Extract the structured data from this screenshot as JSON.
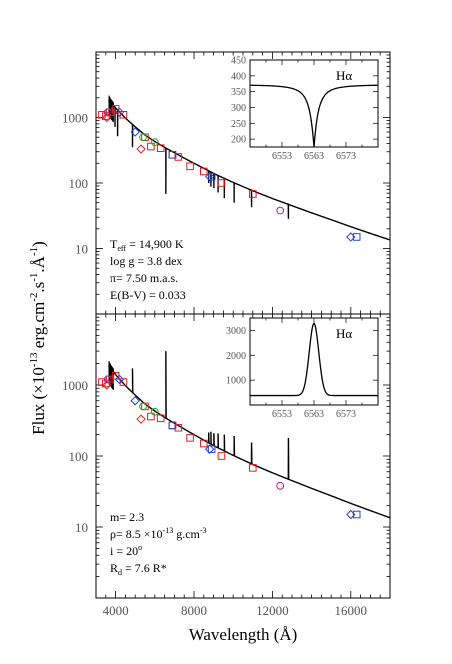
{
  "chart_data": [
    {
      "type": "line",
      "panel": "top",
      "xlim": [
        3000,
        18000
      ],
      "ylim": [
        1,
        10000
      ],
      "yscale": "log",
      "xticks": [
        4000,
        8000,
        12000,
        16000
      ],
      "yticks": [
        {
          "value": 10,
          "label": "10"
        },
        {
          "value": 100,
          "label": "100"
        },
        {
          "value": 1000,
          "label": "1000"
        }
      ],
      "annotations": [
        {
          "text": "T",
          "sub": "eff",
          "rest": " = 14,900 K"
        },
        {
          "text": "log g = 3.8 dex"
        },
        {
          "text": "π= 7.50 m.a.s."
        },
        {
          "text": "E(B-V) = 0.033"
        }
      ],
      "model": {
        "x": [
          3650,
          3750,
          4000,
          4500,
          5000,
          5500,
          6000,
          6500,
          7000,
          7500,
          8000,
          9000,
          10000,
          11000,
          12000,
          13000,
          14000,
          15000,
          16000,
          17000,
          18000
        ],
        "y": [
          2000,
          1750,
          1400,
          980,
          720,
          540,
          430,
          350,
          290,
          240,
          200,
          140,
          102,
          76,
          58,
          45,
          35,
          27.5,
          21.5,
          17,
          13.5
        ]
      },
      "lines": [
        {
          "x": 6563,
          "depth": 0.8
        },
        {
          "x": 4861,
          "depth": 0.55
        },
        {
          "x": 4340,
          "depth": 0.55
        },
        {
          "x": 4102,
          "depth": 0.6
        },
        {
          "x": 3970,
          "depth": 0.5
        },
        {
          "x": 8750,
          "depth": 0.35
        },
        {
          "x": 8863,
          "depth": 0.4
        },
        {
          "x": 9015,
          "depth": 0.4
        },
        {
          "x": 9229,
          "depth": 0.45
        },
        {
          "x": 9546,
          "depth": 0.5
        },
        {
          "x": 10049,
          "depth": 0.5
        },
        {
          "x": 10938,
          "depth": 0.45
        },
        {
          "x": 12818,
          "depth": 0.4
        },
        {
          "x": 16400,
          "depth": 0.25
        },
        {
          "x": 16800,
          "depth": 0.25
        },
        {
          "x": 17360,
          "depth": 0.25
        }
      ],
      "observations": [
        {
          "marker": "square",
          "color": "#dd2222",
          "x": [
            3300,
            3500,
            3700,
            4000,
            4400,
            5500,
            5800,
            6300,
            6900,
            7200,
            7800,
            8500,
            9400,
            11000
          ],
          "y": [
            1100,
            1050,
            1200,
            1350,
            1100,
            500,
            360,
            340,
            270,
            250,
            180,
            150,
            100,
            68
          ]
        },
        {
          "marker": "diamond",
          "color": "#dd2222",
          "x": [
            3550,
            5300
          ],
          "y": [
            1000,
            330
          ]
        },
        {
          "marker": "diamond",
          "color": "#2244cc",
          "x": [
            4200,
            5000,
            8800,
            16000
          ],
          "y": [
            1200,
            600,
            125,
            15
          ]
        },
        {
          "marker": "square",
          "color": "#2244cc",
          "x": [
            6900,
            8900,
            16300
          ],
          "y": [
            270,
            125,
            15
          ]
        },
        {
          "marker": "circle",
          "color": "#22aa22",
          "x": [
            5400,
            6000
          ],
          "y": [
            500,
            420
          ]
        },
        {
          "marker": "circle",
          "color": "#aa2288",
          "x": [
            3600,
            12400
          ],
          "y": [
            1200,
            38
          ]
        }
      ],
      "inset": {
        "xlim": [
          6543,
          6583
        ],
        "ylim": [
          175,
          450
        ],
        "xticks": [
          6553,
          6563,
          6573
        ],
        "yticks": [
          200,
          250,
          300,
          350,
          400,
          450
        ],
        "label": "Hα",
        "profile": "absorption",
        "continuum": 372,
        "center": 6563,
        "depth": 197,
        "width": 2.5
      }
    },
    {
      "type": "line",
      "panel": "bottom",
      "xlim": [
        3000,
        18000
      ],
      "ylim": [
        1,
        10000
      ],
      "yscale": "log",
      "xticks": [
        4000,
        8000,
        12000,
        16000
      ],
      "xtick_labels": [
        "4000",
        "8000",
        "12000",
        "16000"
      ],
      "yticks": [
        {
          "value": 10,
          "label": "10"
        },
        {
          "value": 100,
          "label": "100"
        },
        {
          "value": 1000,
          "label": "1000"
        }
      ],
      "xlabel": "Wavelength (Å)",
      "annotations": [
        {
          "text": "m= 2.3"
        },
        {
          "text": "ρ= 8.5 ×10",
          "sup": "-13",
          "rest": " g.cm",
          "sup2": "-3"
        },
        {
          "text": "i = 20",
          "sup": "o"
        },
        {
          "text": "R",
          "sub": "d",
          "rest": " = 7.6 R*"
        }
      ],
      "model": {
        "x": [
          3650,
          3750,
          4000,
          4500,
          5000,
          5500,
          6000,
          6500,
          7000,
          7500,
          8000,
          9000,
          10000,
          11000,
          12000,
          13000,
          14000,
          15000,
          16000,
          17000,
          18000
        ],
        "y": [
          2000,
          1750,
          1400,
          980,
          720,
          540,
          430,
          350,
          290,
          240,
          200,
          140,
          102,
          76,
          58,
          45,
          35,
          27.5,
          21.5,
          17,
          13.5
        ]
      },
      "emission_lines": [
        {
          "x": 6563,
          "peak": 3000
        },
        {
          "x": 4861,
          "factor": 2.2
        },
        {
          "x": 4340,
          "factor": 1.6
        },
        {
          "x": 8750,
          "factor": 1.4
        },
        {
          "x": 8863,
          "factor": 1.5
        },
        {
          "x": 9015,
          "factor": 1.5
        },
        {
          "x": 9229,
          "factor": 1.6
        },
        {
          "x": 9546,
          "factor": 1.7
        },
        {
          "x": 10049,
          "factor": 1.9
        },
        {
          "x": 10938,
          "factor": 2.0
        },
        {
          "x": 12818,
          "factor": 3.8
        }
      ],
      "observations": [
        {
          "marker": "square",
          "color": "#dd2222",
          "x": [
            3300,
            3500,
            3700,
            4000,
            4400,
            5500,
            5800,
            6300,
            6900,
            7200,
            7800,
            8500,
            9400,
            11000
          ],
          "y": [
            1100,
            1050,
            1200,
            1350,
            1100,
            500,
            360,
            340,
            270,
            250,
            180,
            150,
            100,
            68
          ]
        },
        {
          "marker": "diamond",
          "color": "#dd2222",
          "x": [
            3550,
            5300
          ],
          "y": [
            1000,
            330
          ]
        },
        {
          "marker": "diamond",
          "color": "#2244cc",
          "x": [
            4200,
            5000,
            8800,
            16000
          ],
          "y": [
            1200,
            600,
            125,
            15
          ]
        },
        {
          "marker": "square",
          "color": "#2244cc",
          "x": [
            6900,
            8900,
            16300
          ],
          "y": [
            270,
            125,
            15
          ]
        },
        {
          "marker": "circle",
          "color": "#22aa22",
          "x": [
            5400,
            6000
          ],
          "y": [
            500,
            420
          ]
        },
        {
          "marker": "circle",
          "color": "#aa2288",
          "x": [
            3600,
            12400
          ],
          "y": [
            1200,
            38
          ]
        }
      ],
      "inset": {
        "xlim": [
          6543,
          6583
        ],
        "ylim": [
          0,
          3500
        ],
        "xticks": [
          6553,
          6563,
          6573
        ],
        "yticks": [
          1000,
          2000,
          3000
        ],
        "label": "Hα",
        "profile": "emission",
        "continuum": 380,
        "center": 6563,
        "peak": 3280,
        "width": 2.1
      }
    }
  ],
  "ylabel": {
    "main": "Flux (×10",
    "sup1": "-13",
    "mid": " erg.cm",
    "sup2": "-2",
    "mid2": ".s",
    "sup3": "-1",
    "mid3": ".Å",
    "sup4": "-1",
    "end": ")"
  }
}
